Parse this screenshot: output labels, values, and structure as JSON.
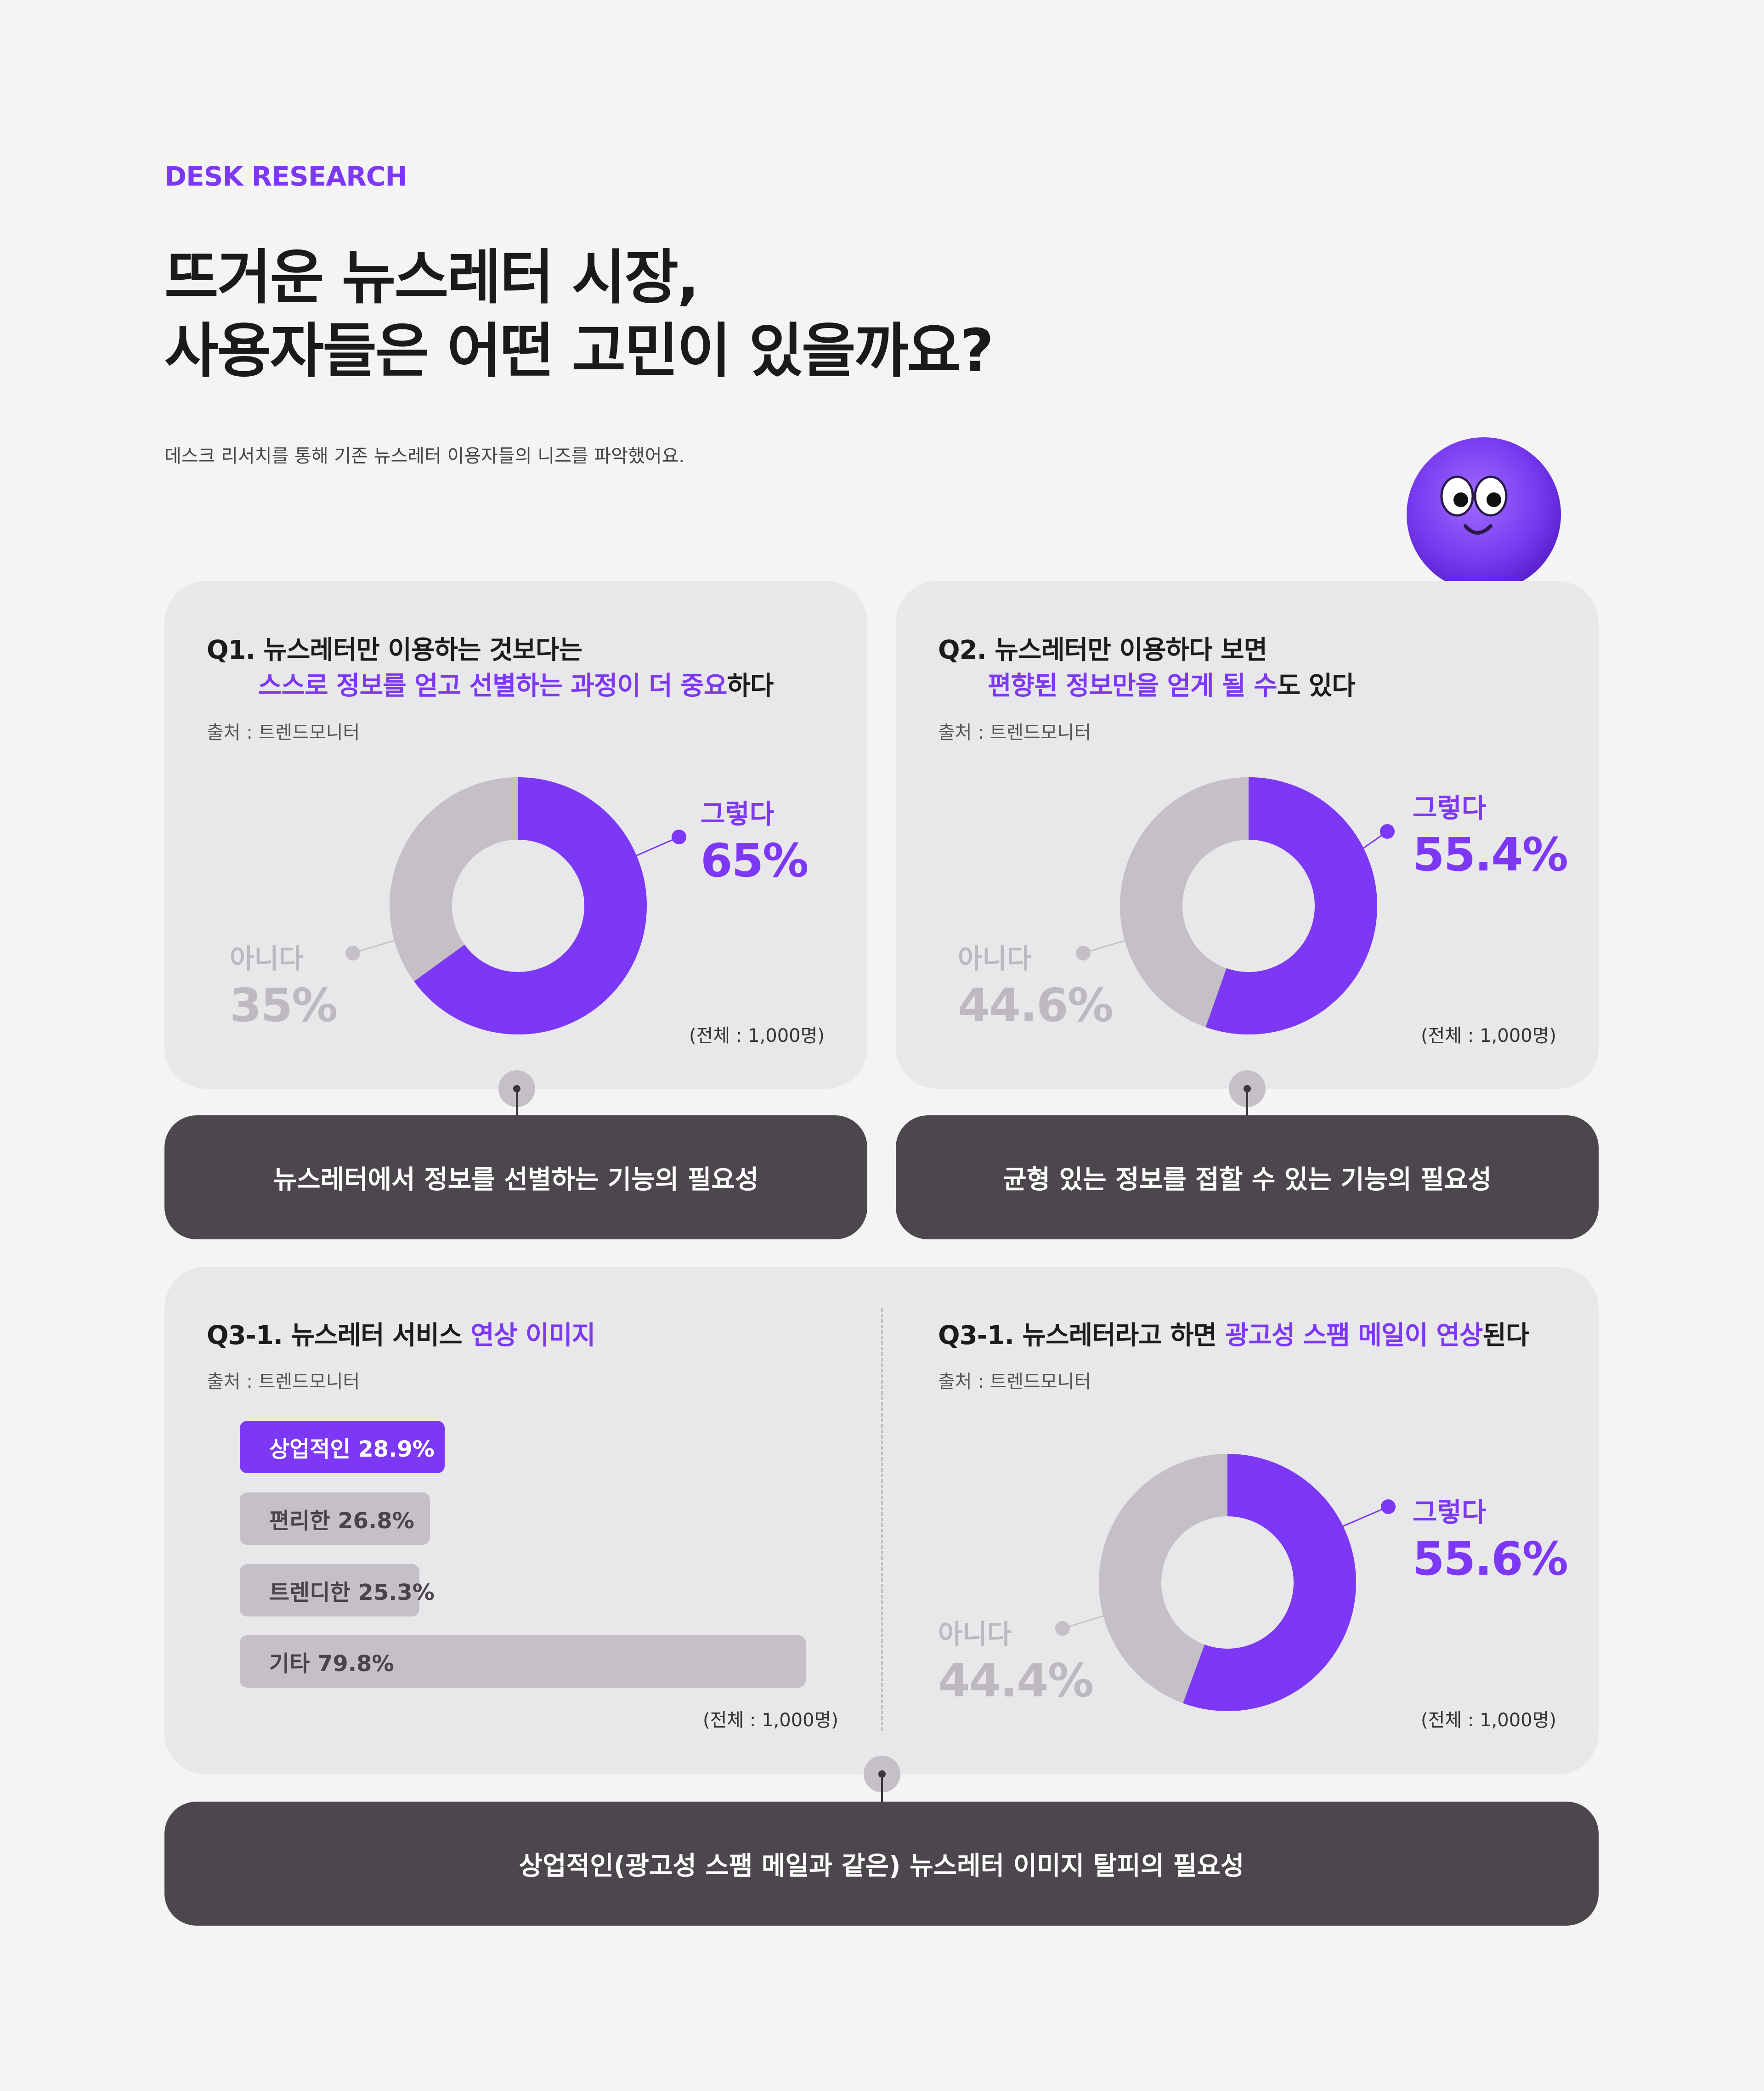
{
  "header": {
    "eyebrow": "DESK RESEARCH",
    "title_line1": "뜨거운 뉴스레터 시장,",
    "title_line2": "사용자들은 어떤 고민이 있을까요?",
    "subtitle": "데스크 리서치를 통해 기존 뉴스레터 이용자들의 니즈를 파악했어요."
  },
  "q1": {
    "line1": "Q1. 뉴스레터만 이용하는 것보다는",
    "line2_highlight": "스스로 정보를 얻고 선별하는 과정이 더 중요",
    "line2_rest": "하다",
    "source": "출처 : 트렌드모니터",
    "total": "(전체 : 1,000명)",
    "insight": "뉴스레터에서 정보를 선별하는 기능의 필요성"
  },
  "q2": {
    "line1": "Q2. 뉴스레터만 이용하다 보면",
    "line2_highlight": "편향된 정보만을 얻게 될 수",
    "line2_rest": "도 있다",
    "source": "출처 : 트렌드모니터",
    "total": "(전체 : 1,000명)",
    "insight": "균형 있는 정보를 접할 수 있는 기능의 필요성"
  },
  "q31a": {
    "title_prefix": "Q3-1. 뉴스레터 서비스 ",
    "title_highlight": "연상 이미지",
    "source": "출처 : 트렌드모니터",
    "total": "(전체 : 1,000명)"
  },
  "q31b": {
    "title_prefix": "Q3-1. 뉴스레터라고 하면 ",
    "title_highlight": "광고성 스팸 메일이 연상",
    "title_suffix": "된다",
    "source": "출처 : 트렌드모니터",
    "total": "(전체 : 1,000명)"
  },
  "insight3": "상업적인(광고성 스팸 메일과 같은) 뉴스레터 이미지 탈피의 필요성",
  "colors": {
    "accent": "#7c38f5",
    "neutral": "#c5c0c5",
    "card": "#e8e7e9",
    "dark": "#4c474c"
  },
  "chart_data": [
    {
      "type": "pie",
      "categories": [
        "그렇다",
        "아니다"
      ],
      "labels": [
        "65%",
        "35%"
      ],
      "values": [
        65,
        35
      ]
    },
    {
      "type": "pie",
      "categories": [
        "그렇다",
        "아니다"
      ],
      "labels": [
        "55.4%",
        "44.6%"
      ],
      "values": [
        55.4,
        44.6
      ]
    },
    {
      "type": "bar",
      "categories": [
        "상업적인",
        "편리한",
        "트렌디한",
        "기타"
      ],
      "labels": [
        "28.9%",
        "26.8%",
        "25.3%",
        "79.8%"
      ],
      "values": [
        28.9,
        26.8,
        25.3,
        79.8
      ]
    },
    {
      "type": "pie",
      "categories": [
        "그렇다",
        "아니다"
      ],
      "labels": [
        "55.6%",
        "44.4%"
      ],
      "values": [
        55.6,
        44.4
      ]
    }
  ]
}
